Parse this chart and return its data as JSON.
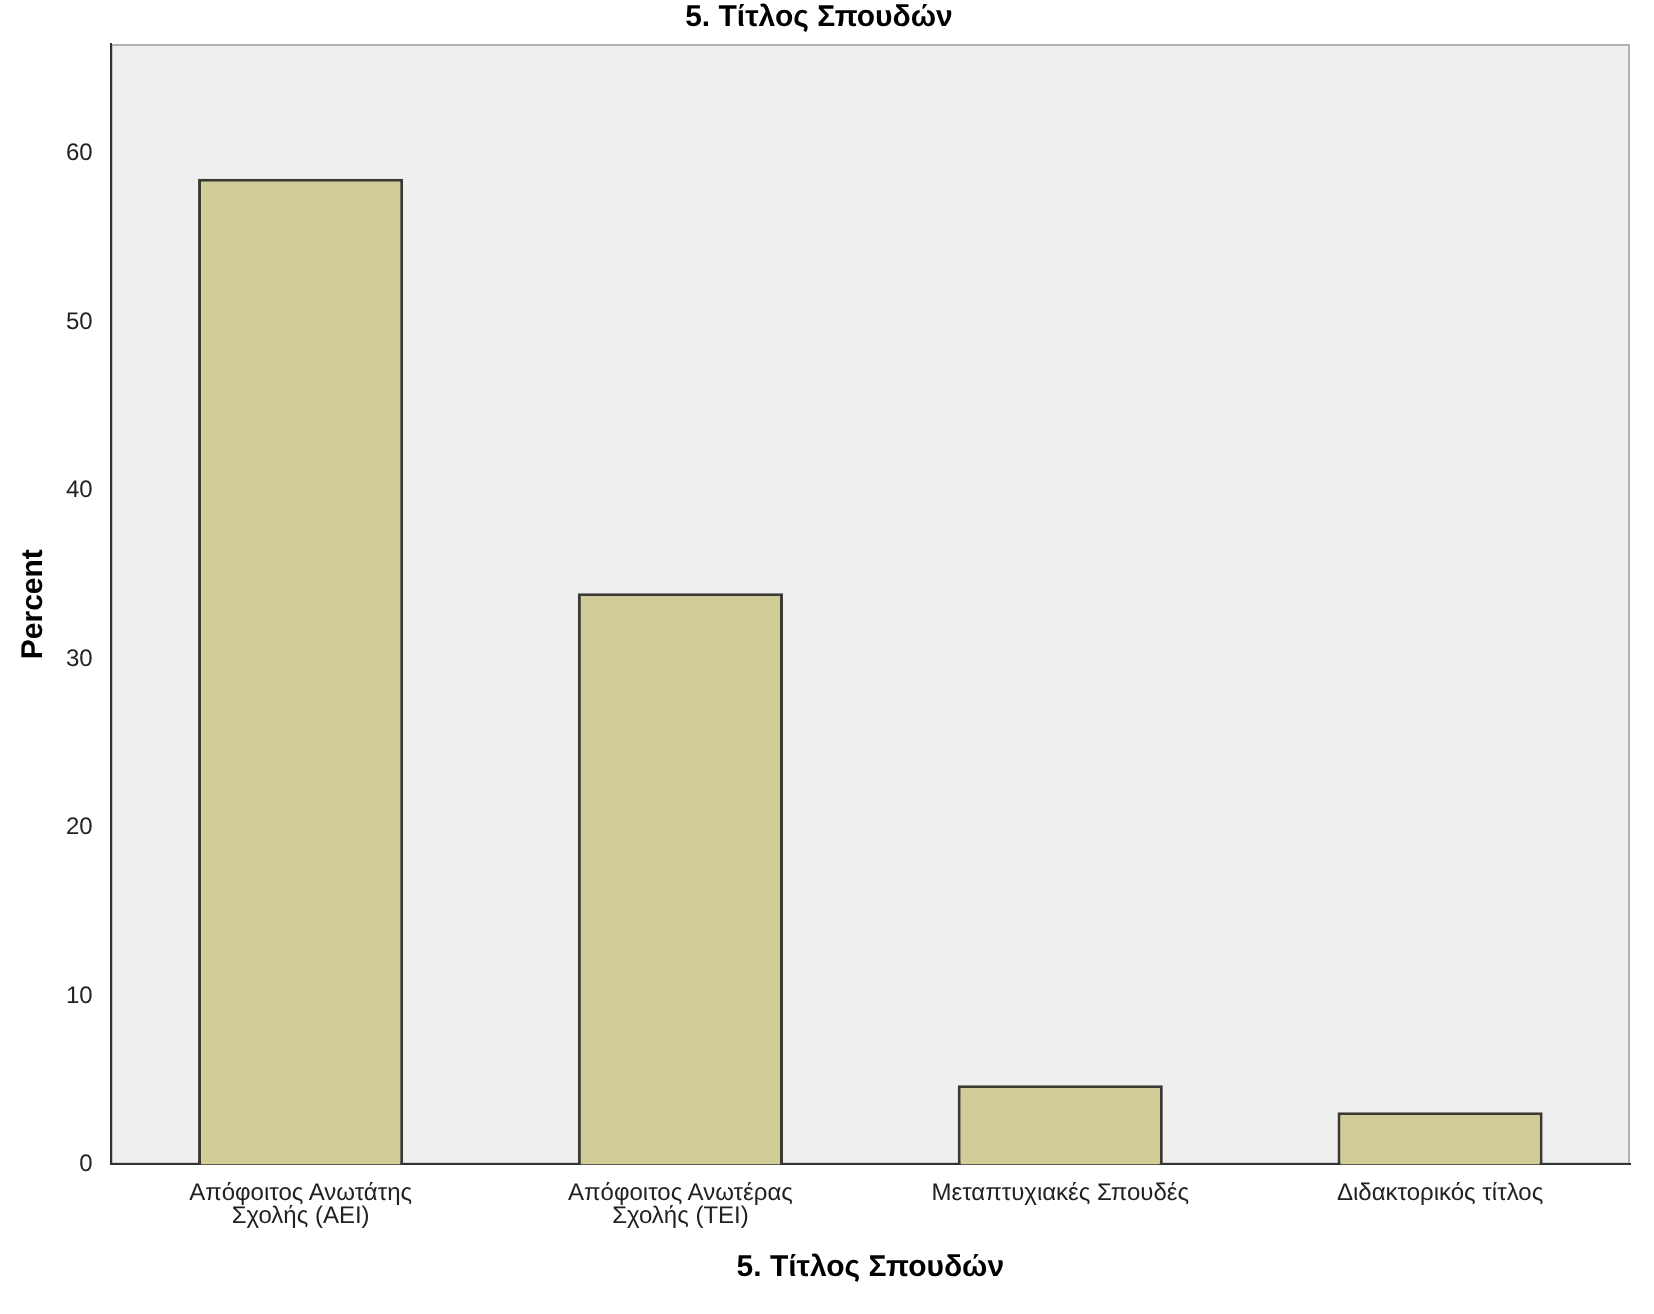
{
  "chart_data": {
    "type": "bar",
    "title": "5. Τίτλος Σπουδών",
    "xlabel": "5. Τίτλος Σπουδών",
    "ylabel": "Percent",
    "categories": [
      "Απόφοιτος Ανωτάτης Σχολής (ΑΕΙ)",
      "Απόφοιτος Ανωτέρας Σχολής (ΤΕΙ)",
      "Μεταπτυχιακές Σπουδές",
      "Διδακτορικός τίτλος"
    ],
    "values": [
      58.5,
      33.9,
      4.7,
      3.1
    ],
    "color": "#d2cd96",
    "ylim": [
      0,
      66.5
    ],
    "yticks": [
      0,
      10,
      20,
      30,
      40,
      50,
      60
    ],
    "grid": false,
    "legend": false
  }
}
